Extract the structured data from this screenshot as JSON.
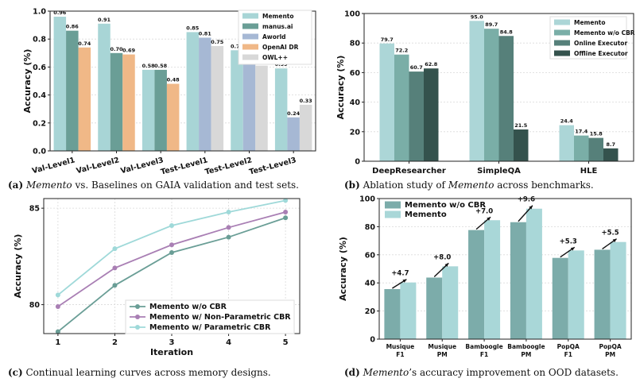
{
  "colors": {
    "memento": "#a8d5d6",
    "manus": "#6a9e96",
    "aworld": "#a6b8d4",
    "openai": "#f0b887",
    "owl": "#d8d8d8",
    "abl_memento": "#acd6d7",
    "abl_wocbr": "#7aaea7",
    "abl_online": "#56807a",
    "abl_offline": "#34524d",
    "line_wocbr": "#6a9e96",
    "line_nonparam": "#a97fb4",
    "line_param": "#9fd9d9",
    "ood_wocbr": "#7cacaa",
    "ood_memento": "#a9d7d8"
  },
  "captions": {
    "a": {
      "tag": "(a)",
      "em": "Memento",
      "rest": " vs. Baselines on GAIA validation and test sets."
    },
    "b": {
      "tag": "(b)",
      "pre": " Ablation study of ",
      "em": "Memento",
      "rest": " across benchmarks."
    },
    "c": {
      "tag": "(c)",
      "rest": " Continual learning curves across memory designs."
    },
    "d": {
      "tag": "(d)",
      "em": "Memento",
      "rest": "’s accuracy improvement on OOD datasets."
    }
  },
  "chart_data": [
    {
      "id": "a",
      "type": "bar",
      "ylabel": "Accuracy (%)",
      "ylim": [
        0,
        1.0
      ],
      "yticks": [
        "0.0",
        "0.2",
        "0.4",
        "0.6",
        "0.8",
        "1.0"
      ],
      "grid": true,
      "legend_position": "top-right",
      "categories": [
        "Val-Level1",
        "Val-Level2",
        "Val-Level3",
        "Test-Level1",
        "Test-Level2",
        "Test-Level3"
      ],
      "series": [
        {
          "name": "Memento",
          "color_key": "memento",
          "values": [
            0.96,
            0.91,
            0.58,
            0.85,
            0.72,
            0.59
          ]
        },
        {
          "name": "manus.ai",
          "color_key": "manus",
          "values": [
            0.86,
            0.7,
            0.58,
            null,
            null,
            null
          ]
        },
        {
          "name": "Aworld",
          "color_key": "aworld",
          "values": [
            null,
            null,
            null,
            0.81,
            0.65,
            0.24
          ]
        },
        {
          "name": "OpenAI DR",
          "color_key": "openai",
          "values": [
            0.74,
            0.69,
            0.48,
            null,
            null,
            null
          ]
        },
        {
          "name": "OWL++",
          "color_key": "owl",
          "values": [
            null,
            null,
            null,
            0.75,
            0.61,
            0.33
          ]
        }
      ],
      "labels": [
        [
          "0.96",
          "0.91",
          "0.58",
          "0.85",
          "0.72",
          "0.59"
        ],
        [
          "0.86",
          "0.70",
          "0.58",
          "",
          "",
          ""
        ],
        [
          "",
          "",
          "",
          "0.81",
          "0.65",
          "0.24"
        ],
        [
          "0.74",
          "0.69",
          "0.48",
          "",
          "",
          ""
        ],
        [
          "",
          "",
          "",
          "0.75",
          "0.61",
          "0.33"
        ]
      ]
    },
    {
      "id": "b",
      "type": "bar",
      "ylabel": "Accuracy (%)",
      "ylim": [
        0,
        100
      ],
      "yticks": [
        "0",
        "20",
        "40",
        "60",
        "80",
        "100"
      ],
      "grid": true,
      "legend_position": "top-right",
      "categories": [
        "DeepResearcher",
        "SimpleQA",
        "HLE"
      ],
      "series": [
        {
          "name": "Memento",
          "color_key": "abl_memento",
          "values": [
            79.7,
            95.0,
            24.4
          ],
          "labels": [
            "79.7",
            "95.0",
            "24.4"
          ]
        },
        {
          "name": "Memento w/o CBR",
          "color_key": "abl_wocbr",
          "values": [
            72.2,
            89.7,
            17.4
          ],
          "labels": [
            "72.2",
            "89.7",
            "17.4"
          ]
        },
        {
          "name": "Online Executor",
          "color_key": "abl_online",
          "values": [
            60.7,
            84.8,
            15.8
          ],
          "labels": [
            "60.7",
            "84.8",
            "15.8"
          ]
        },
        {
          "name": "Offline Executor",
          "color_key": "abl_offline",
          "values": [
            62.8,
            21.5,
            8.7
          ],
          "labels": [
            "62.8",
            "21.5",
            "8.7"
          ]
        }
      ]
    },
    {
      "id": "c",
      "type": "line",
      "xlabel": "Iteration",
      "ylabel": "Accuracy (%)",
      "x": [
        1,
        2,
        3,
        4,
        5
      ],
      "xticks": [
        "1",
        "2",
        "3",
        "4",
        "5"
      ],
      "ylim": [
        78.5,
        85.5
      ],
      "yticks_values": [
        80,
        85
      ],
      "yticks": [
        "80",
        "85"
      ],
      "grid": true,
      "legend_position": "bottom-right",
      "series": [
        {
          "name": "Memento w/o CBR",
          "color_key": "line_wocbr",
          "values": [
            78.6,
            81.0,
            82.7,
            83.5,
            84.5
          ]
        },
        {
          "name": "Memento w/ Non-Parametric CBR",
          "color_key": "line_nonparam",
          "values": [
            79.9,
            81.9,
            83.1,
            84.0,
            84.8
          ]
        },
        {
          "name": "Memento w/ Parametric CBR",
          "color_key": "line_param",
          "values": [
            80.5,
            82.9,
            84.1,
            84.8,
            85.4
          ]
        }
      ]
    },
    {
      "id": "d",
      "type": "bar",
      "ylabel": "Accuracy (%)",
      "ylim": [
        0,
        100
      ],
      "yticks": [
        "0",
        "20",
        "40",
        "60",
        "80",
        "100"
      ],
      "grid": true,
      "legend_position": "top-left",
      "categories": [
        "Musique\nF1",
        "Musique\nPM",
        "Bamboogle\nF1",
        "Bamboogle\nPM",
        "PopQA\nF1",
        "PopQA\nPM"
      ],
      "series": [
        {
          "name": "Memento w/o CBR",
          "color_key": "ood_wocbr",
          "values": [
            35.6,
            43.8,
            77.6,
            83.2,
            57.8,
            63.6
          ]
        },
        {
          "name": "Memento",
          "color_key": "ood_memento",
          "values": [
            40.3,
            51.8,
            84.6,
            92.8,
            63.1,
            69.1
          ]
        }
      ],
      "improvements": [
        "+4.7",
        "+8.0",
        "+7.0",
        "+9.6",
        "+5.3",
        "+5.5"
      ]
    }
  ]
}
